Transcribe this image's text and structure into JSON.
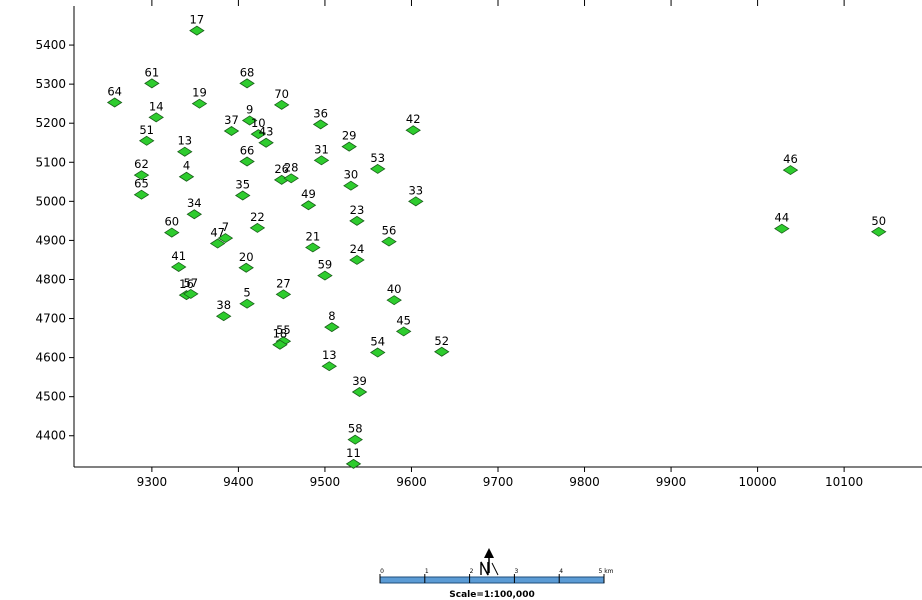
{
  "chart_data": {
    "type": "scatter",
    "title": "",
    "xlabel": "",
    "ylabel": "",
    "xlim": [
      9210,
      10190
    ],
    "ylim": [
      4320,
      5500
    ],
    "grid": false,
    "marker_color": "#2ecc2e",
    "marker_stroke": "#1a5e1a",
    "x_ticks": [
      9300,
      9400,
      9500,
      9600,
      9700,
      9800,
      9900,
      10000,
      10100
    ],
    "x_tick_labels": [
      "9300",
      "9400",
      "9500",
      "9600",
      "9700",
      "9800",
      "9900",
      "10000",
      "10100"
    ],
    "y_ticks": [
      4400,
      4500,
      4600,
      4700,
      4800,
      4900,
      5000,
      5100,
      5200,
      5300,
      5400
    ],
    "y_tick_labels": [
      "4400",
      "4500",
      "4600",
      "4700",
      "4800",
      "4900",
      "5000",
      "5100",
      "5200",
      "5300",
      "5400"
    ],
    "points": [
      {
        "label": "17",
        "x": 9352,
        "y": 5437
      },
      {
        "label": "61",
        "x": 9300,
        "y": 5302
      },
      {
        "label": "68",
        "x": 9410,
        "y": 5302
      },
      {
        "label": "64",
        "x": 9257,
        "y": 5253
      },
      {
        "label": "19",
        "x": 9355,
        "y": 5250
      },
      {
        "label": "70",
        "x": 9450,
        "y": 5247
      },
      {
        "label": "14",
        "x": 9305,
        "y": 5215
      },
      {
        "label": "9",
        "x": 9413,
        "y": 5207
      },
      {
        "label": "36",
        "x": 9495,
        "y": 5197
      },
      {
        "label": "42",
        "x": 9602,
        "y": 5182
      },
      {
        "label": "37",
        "x": 9392,
        "y": 5180
      },
      {
        "label": "10",
        "x": 9423,
        "y": 5172
      },
      {
        "label": "43",
        "x": 9432,
        "y": 5150
      },
      {
        "label": "51",
        "x": 9294,
        "y": 5155
      },
      {
        "label": "29",
        "x": 9528,
        "y": 5140
      },
      {
        "label": "13",
        "x": 9338,
        "y": 5127
      },
      {
        "label": "66",
        "x": 9410,
        "y": 5102
      },
      {
        "label": "31",
        "x": 9496,
        "y": 5105
      },
      {
        "label": "53",
        "x": 9561,
        "y": 5083
      },
      {
        "label": "62",
        "x": 9288,
        "y": 5067
      },
      {
        "label": "4",
        "x": 9340,
        "y": 5063
      },
      {
        "label": "26",
        "x": 9450,
        "y": 5055
      },
      {
        "label": "28",
        "x": 9461,
        "y": 5059
      },
      {
        "label": "30",
        "x": 9530,
        "y": 5040
      },
      {
        "label": "65",
        "x": 9288,
        "y": 5017
      },
      {
        "label": "35",
        "x": 9405,
        "y": 5015
      },
      {
        "label": "33",
        "x": 9605,
        "y": 5000
      },
      {
        "label": "49",
        "x": 9481,
        "y": 4990
      },
      {
        "label": "34",
        "x": 9349,
        "y": 4967
      },
      {
        "label": "23",
        "x": 9537,
        "y": 4950
      },
      {
        "label": "22",
        "x": 9422,
        "y": 4932
      },
      {
        "label": "60",
        "x": 9323,
        "y": 4920
      },
      {
        "label": "7",
        "x": 9385,
        "y": 4906
      },
      {
        "label": "47",
        "x": 9376,
        "y": 4892
      },
      {
        "label": "56",
        "x": 9574,
        "y": 4897
      },
      {
        "label": "21",
        "x": 9486,
        "y": 4882
      },
      {
        "label": "24",
        "x": 9537,
        "y": 4850
      },
      {
        "label": "41",
        "x": 9331,
        "y": 4832
      },
      {
        "label": "20",
        "x": 9409,
        "y": 4830
      },
      {
        "label": "59",
        "x": 9500,
        "y": 4810
      },
      {
        "label": "16",
        "x": 9340,
        "y": 4760
      },
      {
        "label": "57",
        "x": 9345,
        "y": 4763
      },
      {
        "label": "27",
        "x": 9452,
        "y": 4762
      },
      {
        "label": "40",
        "x": 9580,
        "y": 4747
      },
      {
        "label": "5",
        "x": 9410,
        "y": 4738
      },
      {
        "label": "38",
        "x": 9383,
        "y": 4706
      },
      {
        "label": "8",
        "x": 9508,
        "y": 4678
      },
      {
        "label": "45",
        "x": 9591,
        "y": 4667
      },
      {
        "label": "55",
        "x": 9452,
        "y": 4642
      },
      {
        "label": "18",
        "x": 9448,
        "y": 4633
      },
      {
        "label": "54",
        "x": 9561,
        "y": 4613
      },
      {
        "label": "52",
        "x": 9635,
        "y": 4615
      },
      {
        "label": "13",
        "x": 9505,
        "y": 4578
      },
      {
        "label": "39",
        "x": 9540,
        "y": 4512
      },
      {
        "label": "58",
        "x": 9535,
        "y": 4390
      },
      {
        "label": "11",
        "x": 9533,
        "y": 4328
      },
      {
        "label": "46",
        "x": 10038,
        "y": 5080
      },
      {
        "label": "44",
        "x": 10028,
        "y": 4930
      },
      {
        "label": "50",
        "x": 10140,
        "y": 4922
      }
    ]
  },
  "scale_bar": {
    "caption": "Scale=1:100,000",
    "tick_labels": [
      "0",
      "1",
      "2",
      "3",
      "4",
      "5 km"
    ],
    "north_arrow_icon": "north-arrow-icon"
  }
}
